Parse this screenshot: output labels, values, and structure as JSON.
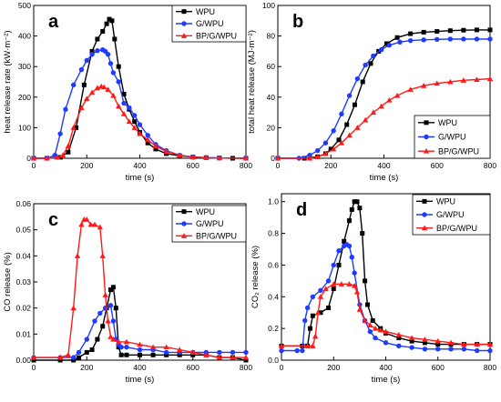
{
  "colors": {
    "WPU": "#000000",
    "G/WPU": "#1f3bff",
    "BP/G/WPU": "#ff1a1a"
  },
  "chart_data": [
    {
      "id": "a",
      "type": "line",
      "panel_label": "a",
      "xlabel": "time (s)",
      "ylabel": "heat release rate (kW·m⁻²)",
      "xlim": [
        0,
        800
      ],
      "ylim": [
        0,
        500
      ],
      "xticks": [
        "0",
        "200",
        "400",
        "600",
        "800"
      ],
      "yticks": [
        "0",
        "100",
        "200",
        "300",
        "400",
        "500"
      ],
      "legend_position": "top-right",
      "series": [
        {
          "name": "WPU",
          "marker": "square",
          "x": [
            0,
            50,
            100,
            130,
            160,
            190,
            220,
            240,
            260,
            275,
            285,
            295,
            305,
            320,
            340,
            360,
            380,
            400,
            430,
            460,
            500,
            550,
            600,
            650,
            700,
            750,
            800
          ],
          "y": [
            0,
            0,
            3,
            20,
            100,
            240,
            350,
            390,
            415,
            440,
            455,
            450,
            390,
            300,
            210,
            160,
            120,
            85,
            50,
            30,
            15,
            8,
            4,
            2,
            1,
            0,
            0
          ]
        },
        {
          "name": "G/WPU",
          "marker": "circle",
          "x": [
            0,
            50,
            80,
            100,
            120,
            150,
            180,
            200,
            220,
            240,
            260,
            270,
            280,
            290,
            300,
            320,
            340,
            360,
            380,
            400,
            430,
            460,
            500,
            550,
            600,
            650,
            700,
            800
          ],
          "y": [
            0,
            0,
            10,
            80,
            160,
            240,
            290,
            320,
            340,
            352,
            355,
            350,
            340,
            310,
            280,
            250,
            180,
            165,
            140,
            110,
            75,
            45,
            25,
            10,
            4,
            2,
            1,
            0
          ]
        },
        {
          "name": "BP/G/WPU",
          "marker": "triangle",
          "x": [
            0,
            50,
            90,
            110,
            130,
            150,
            180,
            200,
            220,
            240,
            255,
            265,
            280,
            300,
            320,
            340,
            360,
            380,
            400,
            430,
            460,
            500,
            550,
            600,
            650,
            700,
            800
          ],
          "y": [
            0,
            0,
            3,
            10,
            40,
            100,
            165,
            195,
            215,
            230,
            235,
            233,
            225,
            205,
            170,
            145,
            120,
            100,
            80,
            60,
            40,
            22,
            10,
            4,
            2,
            1,
            0
          ]
        }
      ]
    },
    {
      "id": "b",
      "type": "line",
      "panel_label": "b",
      "xlabel": "time (s)",
      "ylabel": "total heat release (MJ·m⁻²)",
      "xlim": [
        0,
        800
      ],
      "ylim": [
        0,
        100
      ],
      "xticks": [
        "0",
        "200",
        "400",
        "600",
        "800"
      ],
      "yticks": [
        "0",
        "20",
        "40",
        "60",
        "80",
        "100"
      ],
      "legend_position": "bottom-right",
      "series": [
        {
          "name": "WPU",
          "marker": "square",
          "x": [
            0,
            100,
            150,
            180,
            200,
            230,
            260,
            290,
            320,
            350,
            380,
            410,
            450,
            500,
            550,
            600,
            650,
            700,
            750,
            800
          ],
          "y": [
            0,
            0,
            1,
            3,
            6,
            12,
            22,
            35,
            50,
            62,
            70,
            75,
            79,
            81.5,
            82.5,
            83,
            83.5,
            83.8,
            84,
            84
          ]
        },
        {
          "name": "G/WPU",
          "marker": "circle",
          "x": [
            0,
            80,
            120,
            150,
            180,
            210,
            240,
            270,
            300,
            330,
            360,
            390,
            420,
            460,
            500,
            550,
            600,
            650,
            700,
            750,
            800
          ],
          "y": [
            0,
            0,
            2,
            5,
            10,
            18,
            29,
            41,
            52,
            61,
            67,
            71,
            74,
            76,
            77,
            77.5,
            77.8,
            78,
            78,
            78,
            78
          ]
        },
        {
          "name": "BP/G/WPU",
          "marker": "triangle",
          "x": [
            0,
            120,
            150,
            180,
            210,
            240,
            270,
            300,
            330,
            360,
            390,
            420,
            450,
            500,
            550,
            600,
            650,
            700,
            750,
            800
          ],
          "y": [
            0,
            0,
            1,
            3,
            6,
            10,
            15,
            20,
            25,
            30,
            34,
            38,
            41,
            45,
            47.5,
            49,
            50,
            51,
            51.5,
            52
          ]
        }
      ]
    },
    {
      "id": "c",
      "type": "line",
      "panel_label": "c",
      "xlabel": "time (s)",
      "ylabel": "CO release (%)",
      "xlim": [
        0,
        800
      ],
      "ylim": [
        0,
        0.06
      ],
      "xticks": [
        "0",
        "200",
        "400",
        "600",
        "800"
      ],
      "yticks": [
        "0.00",
        "0.01",
        "0.02",
        "0.03",
        "0.04",
        "0.05",
        "0.06"
      ],
      "legend_position": "top-right",
      "series": [
        {
          "name": "WPU",
          "marker": "square",
          "x": [
            0,
            100,
            150,
            170,
            200,
            220,
            240,
            260,
            275,
            290,
            300,
            310,
            320,
            330,
            350,
            400,
            450,
            500,
            550,
            600,
            650,
            700,
            750,
            800
          ],
          "y": [
            0,
            0,
            0,
            0.001,
            0.003,
            0.004,
            0.008,
            0.013,
            0.02,
            0.027,
            0.028,
            0.02,
            0.005,
            0.002,
            0.002,
            0.002,
            0.002,
            0.002,
            0.002,
            0.002,
            0.002,
            0.001,
            0.001,
            0
          ]
        },
        {
          "name": "G/WPU",
          "marker": "circle",
          "x": [
            0,
            100,
            150,
            170,
            200,
            230,
            250,
            270,
            290,
            300,
            310,
            320,
            330,
            350,
            400,
            450,
            500,
            550,
            600,
            650,
            700,
            750,
            800
          ],
          "y": [
            0.001,
            0.001,
            0.001,
            0.003,
            0.008,
            0.015,
            0.018,
            0.02,
            0.021,
            0.015,
            0.008,
            0.006,
            0.005,
            0.005,
            0.004,
            0.004,
            0.003,
            0.003,
            0.003,
            0.003,
            0.003,
            0.003,
            0.003
          ]
        },
        {
          "name": "BP/G/WPU",
          "marker": "triangle",
          "x": [
            0,
            100,
            130,
            150,
            165,
            180,
            190,
            200,
            215,
            230,
            250,
            260,
            270,
            280,
            290,
            300,
            320,
            350,
            400,
            450,
            500,
            550,
            600,
            650,
            700,
            750,
            800
          ],
          "y": [
            0.001,
            0.001,
            0.002,
            0.02,
            0.04,
            0.052,
            0.054,
            0.054,
            0.052,
            0.052,
            0.051,
            0.04,
            0.025,
            0.015,
            0.009,
            0.008,
            0.007,
            0.007,
            0.006,
            0.005,
            0.005,
            0.004,
            0.003,
            0.002,
            0.001,
            0.001,
            0.001
          ]
        }
      ]
    },
    {
      "id": "d",
      "type": "line",
      "panel_label": "d",
      "xlabel": "time (s)",
      "ylabel": "CO₂ release (%)",
      "xlim": [
        0,
        800
      ],
      "ylim": [
        0,
        1.05
      ],
      "xticks": [
        "0",
        "200",
        "400",
        "600",
        "800"
      ],
      "yticks": [
        "0.0",
        "0.2",
        "0.4",
        "0.6",
        "0.8",
        "1.0"
      ],
      "legend_position": "top-right",
      "series": [
        {
          "name": "WPU",
          "marker": "square",
          "x": [
            0,
            80,
            100,
            110,
            120,
            150,
            180,
            200,
            220,
            240,
            260,
            270,
            280,
            290,
            300,
            310,
            320,
            330,
            350,
            380,
            400,
            450,
            500,
            550,
            600,
            650,
            700,
            750,
            800
          ],
          "y": [
            0.09,
            0.09,
            0.09,
            0.2,
            0.28,
            0.3,
            0.33,
            0.45,
            0.6,
            0.75,
            0.88,
            0.95,
            1.0,
            1.0,
            0.96,
            0.8,
            0.5,
            0.35,
            0.25,
            0.2,
            0.17,
            0.14,
            0.12,
            0.11,
            0.1,
            0.1,
            0.1,
            0.1,
            0.1
          ]
        },
        {
          "name": "G/WPU",
          "marker": "circle",
          "x": [
            0,
            60,
            80,
            90,
            100,
            120,
            150,
            180,
            200,
            220,
            240,
            250,
            260,
            270,
            280,
            300,
            320,
            340,
            360,
            400,
            450,
            500,
            550,
            600,
            650,
            700,
            750,
            800
          ],
          "y": [
            0.06,
            0.06,
            0.06,
            0.25,
            0.33,
            0.4,
            0.44,
            0.5,
            0.6,
            0.69,
            0.72,
            0.73,
            0.72,
            0.65,
            0.55,
            0.35,
            0.25,
            0.18,
            0.14,
            0.11,
            0.09,
            0.08,
            0.07,
            0.07,
            0.07,
            0.07,
            0.06,
            0.06
          ]
        },
        {
          "name": "BP/G/WPU",
          "marker": "triangle",
          "x": [
            0,
            100,
            120,
            130,
            140,
            150,
            170,
            200,
            230,
            260,
            280,
            290,
            300,
            320,
            340,
            360,
            380,
            400,
            450,
            500,
            550,
            600,
            650,
            700,
            750,
            800
          ],
          "y": [
            0.09,
            0.09,
            0.09,
            0.15,
            0.3,
            0.4,
            0.45,
            0.48,
            0.48,
            0.48,
            0.47,
            0.43,
            0.32,
            0.25,
            0.22,
            0.2,
            0.19,
            0.18,
            0.16,
            0.14,
            0.13,
            0.12,
            0.11,
            0.1,
            0.1,
            0.1
          ]
        }
      ]
    }
  ]
}
